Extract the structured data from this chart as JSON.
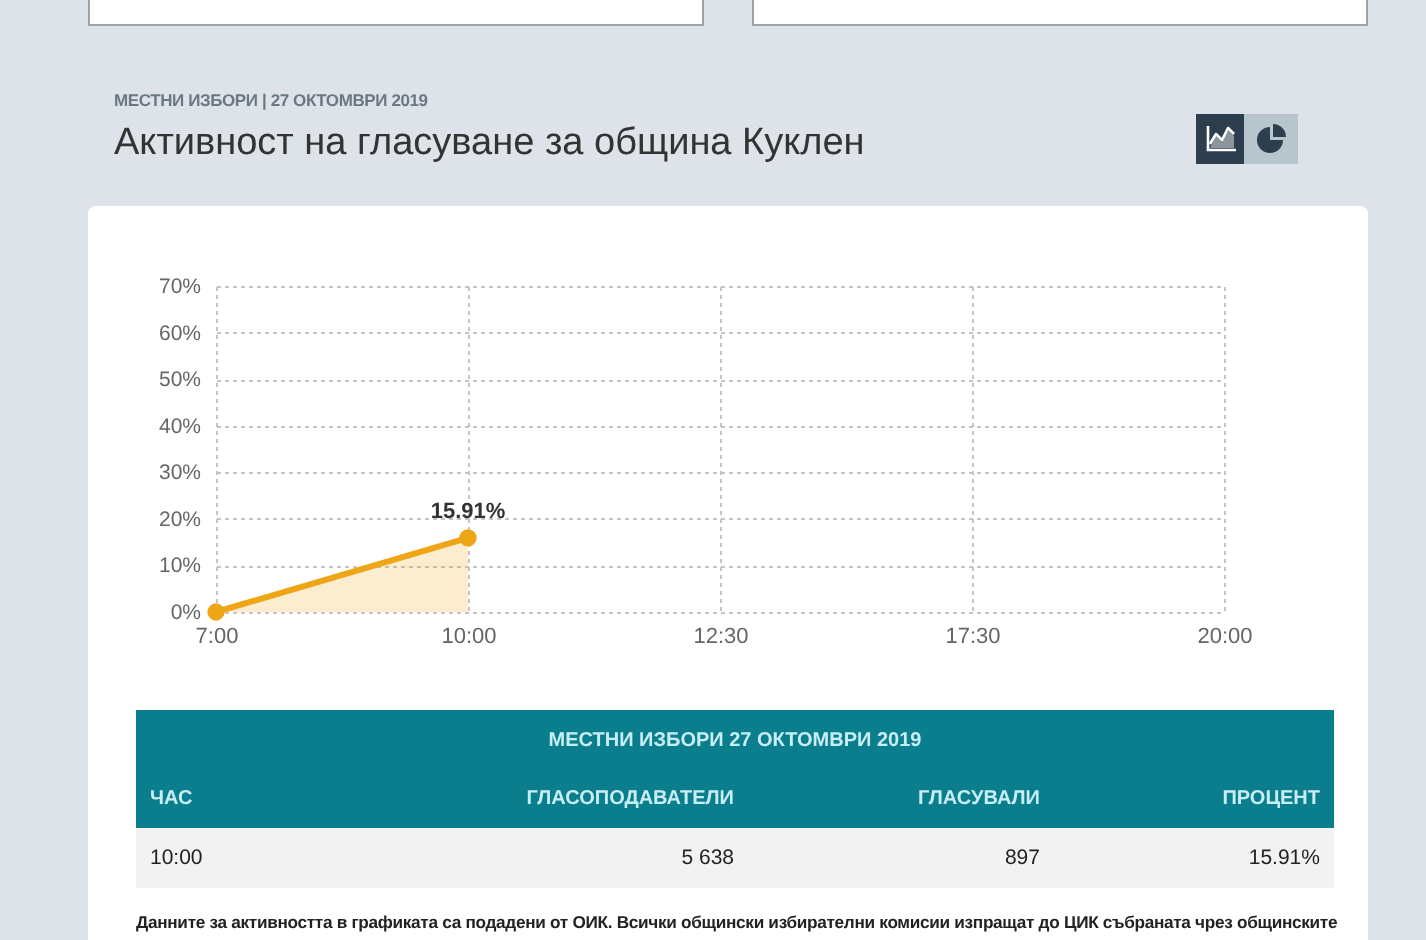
{
  "chart_data": {
    "type": "area",
    "title": "Активност на гласуване за община Куклен",
    "subtitle": "МЕСТНИ ИЗБОРИ | 27 ОКТОМВРИ 2019",
    "categories": [
      "7:00",
      "10:00",
      "12:30",
      "17:30",
      "20:00"
    ],
    "series": [
      {
        "color": "#eea516",
        "values": [
          0,
          15.91,
          null,
          null,
          null
        ],
        "value_labels": [
          null,
          "15.91%",
          null,
          null,
          null
        ]
      }
    ],
    "ylim": [
      0,
      70
    ],
    "yticks": [
      {
        "value": 0,
        "label": "0%"
      },
      {
        "value": 10,
        "label": "10%"
      },
      {
        "value": 20,
        "label": "20%"
      },
      {
        "value": 30,
        "label": "30%"
      },
      {
        "value": 40,
        "label": "40%"
      },
      {
        "value": 50,
        "label": "50%"
      },
      {
        "value": 60,
        "label": "60%"
      },
      {
        "value": 70,
        "label": "70%"
      }
    ],
    "grid": true,
    "marker": "circle",
    "annotations": [
      "МЕСТНИ ИЗБОРИ 27 ОКТОМВРИ 2019",
      "ЧАС",
      "ГЛАСОПОДАВАТЕЛИ",
      "ГЛАСУВАЛИ",
      "ПРОЦЕНТ",
      "10:00",
      "5 638",
      "897",
      "15.91%",
      "Данните за активността в графиката са подадени от ОИК. Всички общински избирателни комисии изпращат до ЦИК събраната чрез общинските"
    ]
  }
}
